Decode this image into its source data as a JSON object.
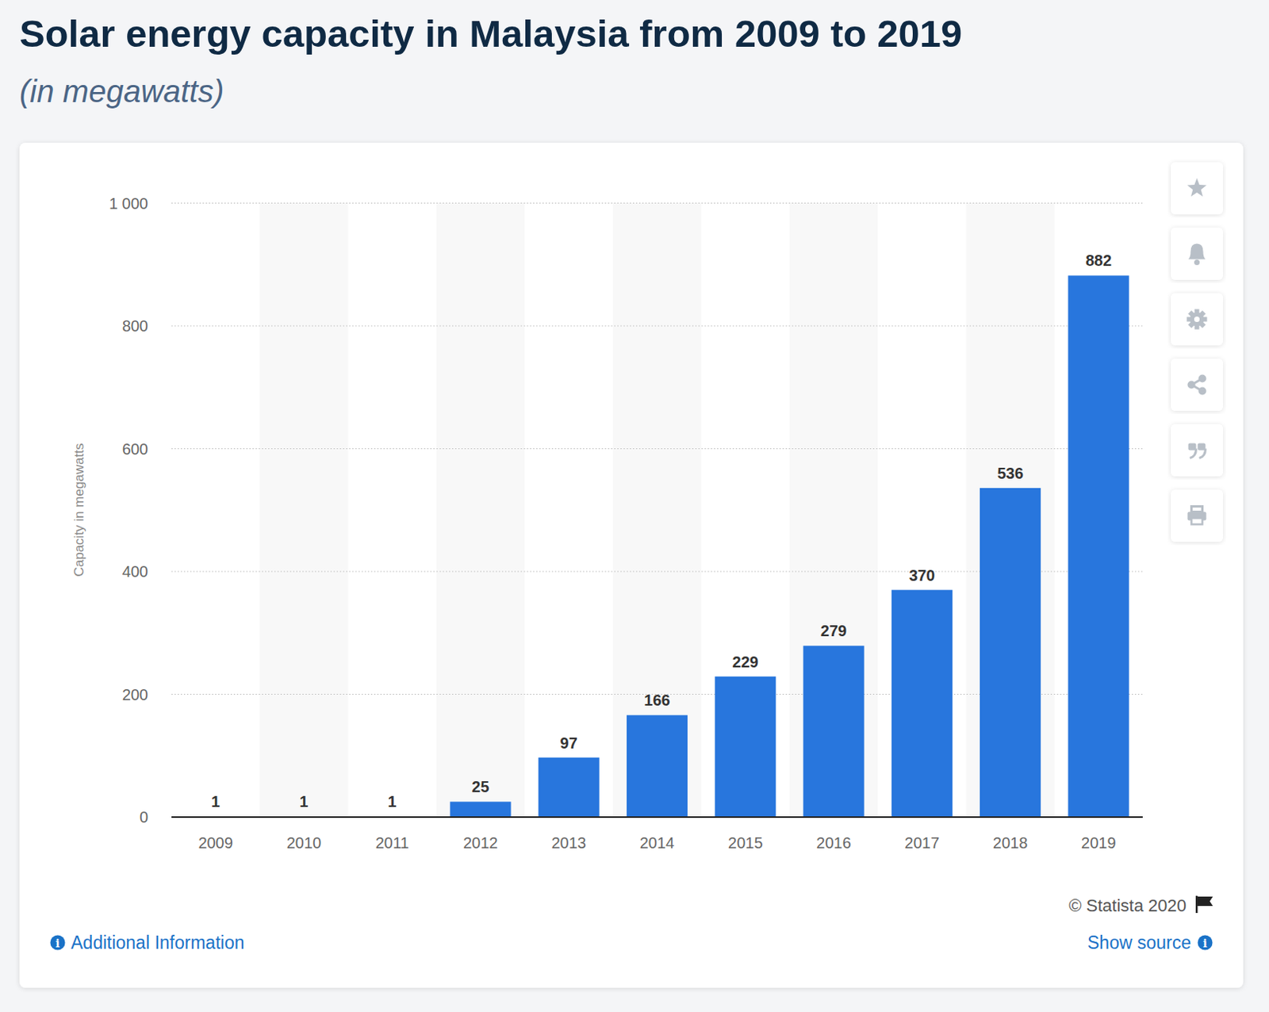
{
  "chart_data": {
    "type": "bar",
    "title": "Solar energy capacity in Malaysia from 2009 to 2019",
    "subtitle": "(in megawatts)",
    "y_label": "Capacity in megawatts",
    "categories": [
      "2009",
      "2010",
      "2011",
      "2012",
      "2013",
      "2014",
      "2015",
      "2016",
      "2017",
      "2018",
      "2019"
    ],
    "values": [
      1,
      1,
      1,
      25,
      97,
      166,
      229,
      279,
      370,
      536,
      882
    ],
    "color": "#2876dd",
    "ylim": [
      0,
      1000
    ],
    "yticks": [
      0,
      200,
      400,
      600,
      800,
      {
        "value": 1000,
        "label": "1 000"
      }
    ],
    "grid": true,
    "data_labels": true
  },
  "footer": {
    "copyright": "© Statista 2020",
    "additional_info": "Additional Information",
    "show_source": "Show source"
  }
}
